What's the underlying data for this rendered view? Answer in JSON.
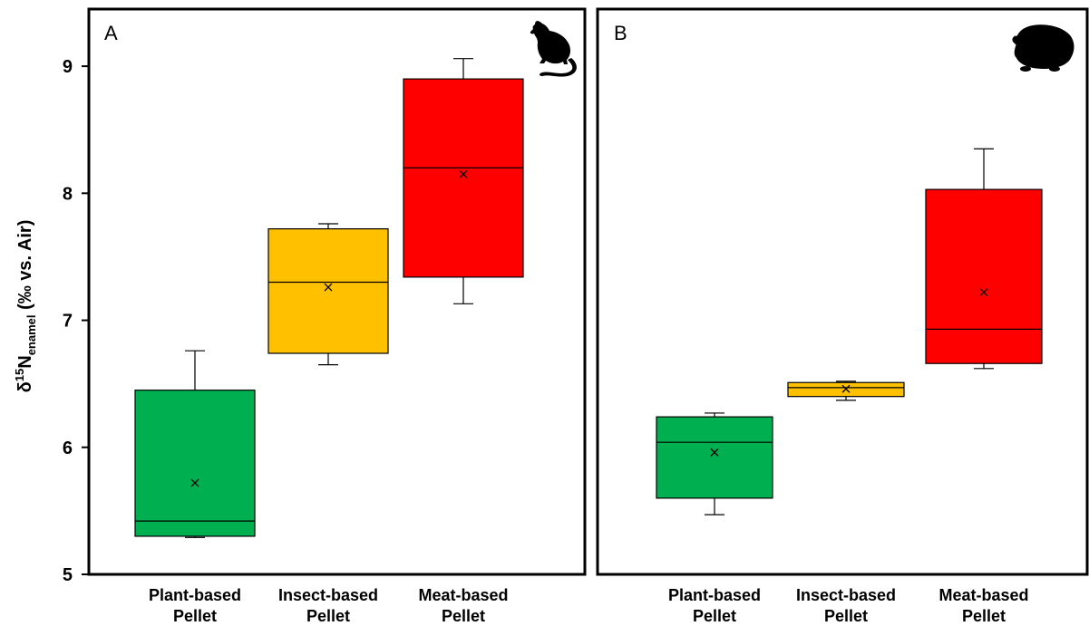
{
  "chart_data": [
    {
      "type": "box",
      "panel_label": "A",
      "icon": "rat-silhouette-icon",
      "ylabel": {
        "prefix": "δ",
        "sup": "15",
        "main": "N",
        "sub": "enamel",
        "suffix": " (‰ vs. Air)"
      },
      "ylim": [
        5,
        9.45
      ],
      "yticks": [
        5,
        6,
        7,
        8,
        9
      ],
      "categories": [
        [
          "Plant-based",
          "Pellet"
        ],
        [
          "Insect-based",
          "Pellet"
        ],
        [
          "Meat-based",
          "Pellet"
        ]
      ],
      "boxes": [
        {
          "min": 5.29,
          "q1": 5.3,
          "median": 5.42,
          "q3": 6.45,
          "max": 6.76,
          "mean": 5.72,
          "color": "#00b050"
        },
        {
          "min": 6.65,
          "q1": 6.74,
          "median": 7.3,
          "q3": 7.72,
          "max": 7.76,
          "mean": 7.26,
          "color": "#ffc000"
        },
        {
          "min": 7.13,
          "q1": 7.34,
          "median": 8.2,
          "q3": 8.9,
          "max": 9.06,
          "mean": 8.15,
          "color": "#ff0000"
        }
      ]
    },
    {
      "type": "box",
      "panel_label": "B",
      "icon": "guinea-pig-silhouette-icon",
      "ylim": [
        5,
        9.45
      ],
      "categories": [
        [
          "Plant-based",
          "Pellet"
        ],
        [
          "Insect-based",
          "Pellet"
        ],
        [
          "Meat-based",
          "Pellet"
        ]
      ],
      "boxes": [
        {
          "min": 5.47,
          "q1": 5.6,
          "median": 6.04,
          "q3": 6.24,
          "max": 6.27,
          "mean": 5.96,
          "color": "#00b050"
        },
        {
          "min": 6.37,
          "q1": 6.4,
          "median": 6.47,
          "q3": 6.51,
          "max": 6.52,
          "mean": 6.46,
          "color": "#ffc000"
        },
        {
          "min": 6.62,
          "q1": 6.66,
          "median": 6.93,
          "q3": 8.03,
          "max": 8.35,
          "mean": 7.22,
          "color": "#ff0000"
        }
      ]
    }
  ]
}
